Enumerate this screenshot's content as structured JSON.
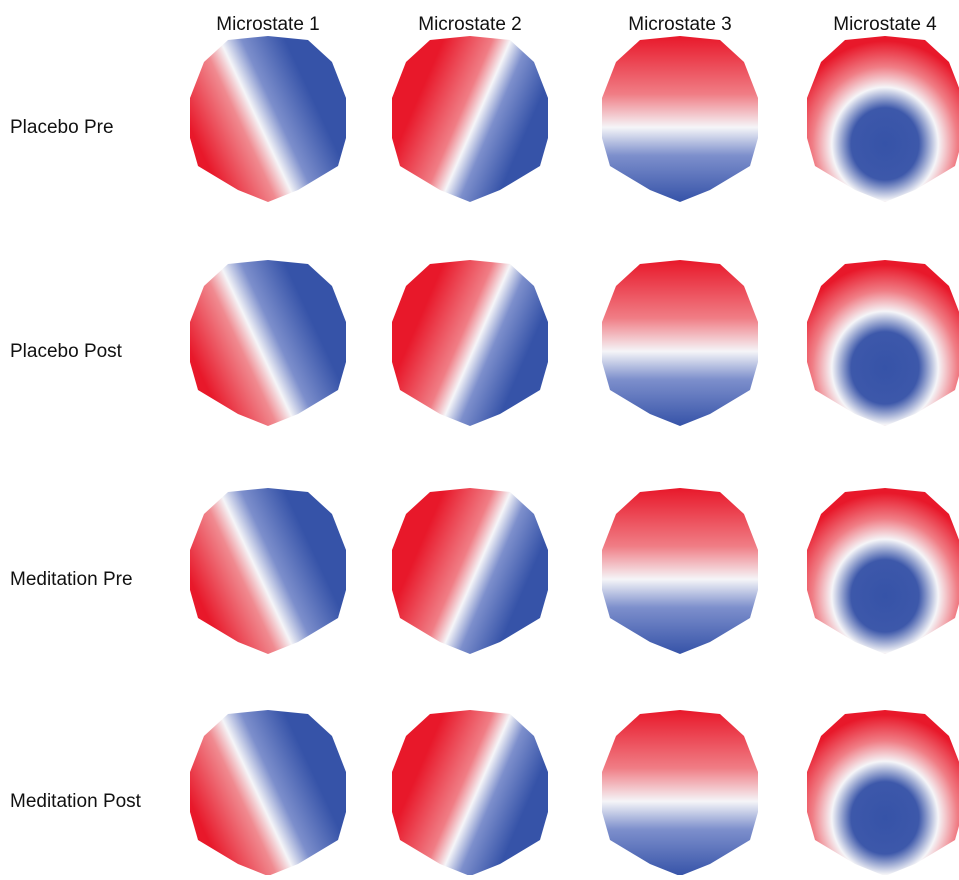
{
  "columns": [
    "Microstate 1",
    "Microstate 2",
    "Microstate 3",
    "Microstate 4"
  ],
  "rows": [
    "Placebo Pre",
    "Placebo Post",
    "Meditation Pre",
    "Meditation Post"
  ]
}
